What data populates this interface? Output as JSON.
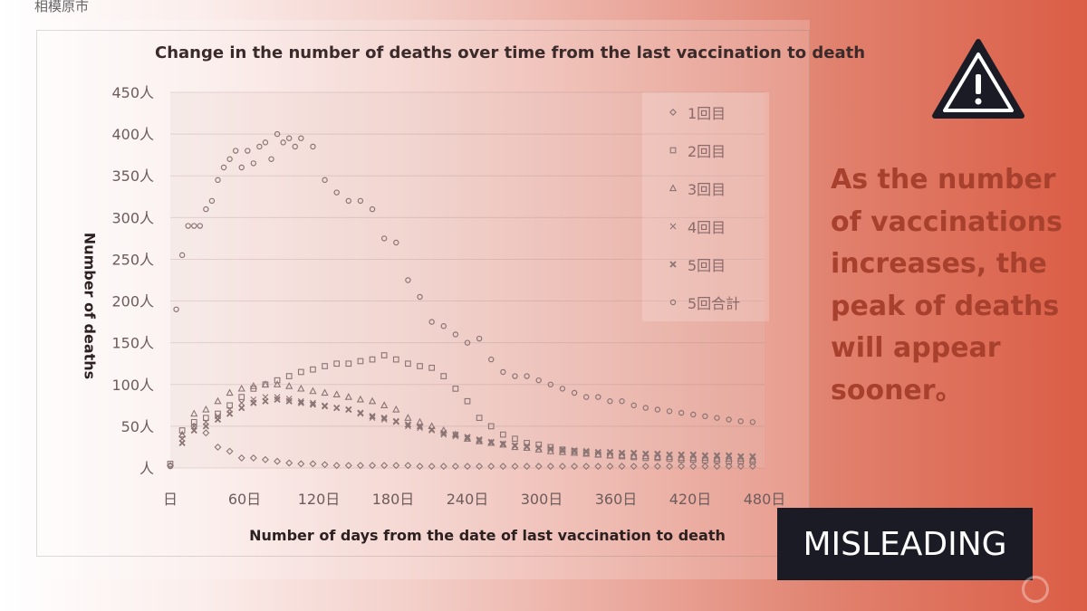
{
  "source_label": "相模原市",
  "claim_text": "As the number of vaccinations increases, the peak of deaths will appear sooner。",
  "verdict_label": "MISLEADING",
  "icons": {
    "warning": "warning-triangle-icon"
  },
  "colors": {
    "accent": "#db5d45",
    "badge_bg": "#1b1b26",
    "claim_text": "#a8402e"
  },
  "chart_data": {
    "type": "scatter",
    "title": "Change in the number of deaths over time from the last vaccination to death",
    "xlabel": "Number of days from the date of last vaccination to death",
    "ylabel": "Number of deaths",
    "xlim": [
      0,
      500
    ],
    "ylim": [
      0,
      450
    ],
    "x_ticks": [
      "日",
      "60日",
      "120日",
      "180日",
      "240日",
      "300日",
      "360日",
      "420日",
      "480日"
    ],
    "y_ticks": [
      "人",
      "50人",
      "100人",
      "150人",
      "200人",
      "250人",
      "300人",
      "350人",
      "400人",
      "450人"
    ],
    "legend_position": "top-right",
    "series": [
      {
        "name": "1回目",
        "marker": "diamond",
        "x": [
          0,
          10,
          20,
          30,
          40,
          50,
          60,
          70,
          80,
          90,
          100,
          110,
          120,
          130,
          140,
          150,
          160,
          170,
          180,
          190,
          200,
          210,
          220,
          230,
          240,
          250,
          260,
          270,
          280,
          290,
          300,
          310,
          320,
          330,
          340,
          350,
          360,
          370,
          380,
          390,
          400,
          410,
          420,
          430,
          440,
          450,
          460,
          470,
          480,
          490
        ],
        "y": [
          3,
          38,
          50,
          42,
          25,
          20,
          12,
          12,
          10,
          8,
          6,
          5,
          5,
          4,
          3,
          3,
          3,
          3,
          3,
          3,
          3,
          2,
          2,
          2,
          2,
          2,
          2,
          2,
          2,
          2,
          2,
          2,
          2,
          2,
          2,
          2,
          2,
          2,
          2,
          2,
          2,
          2,
          2,
          2,
          2,
          2,
          2,
          2,
          2,
          2
        ]
      },
      {
        "name": "2回目",
        "marker": "square",
        "x": [
          0,
          10,
          20,
          30,
          40,
          50,
          60,
          70,
          80,
          90,
          100,
          110,
          120,
          130,
          140,
          150,
          160,
          170,
          180,
          190,
          200,
          210,
          220,
          230,
          240,
          250,
          260,
          270,
          280,
          290,
          300,
          310,
          320,
          330,
          340,
          350,
          360,
          370,
          380,
          390,
          400,
          410,
          420,
          430,
          440,
          450,
          460,
          470,
          480,
          490
        ],
        "y": [
          5,
          45,
          55,
          60,
          65,
          75,
          85,
          95,
          100,
          105,
          110,
          115,
          118,
          122,
          125,
          125,
          128,
          130,
          135,
          130,
          125,
          122,
          120,
          110,
          95,
          80,
          60,
          50,
          40,
          35,
          30,
          28,
          25,
          22,
          20,
          18,
          16,
          15,
          14,
          13,
          12,
          12,
          11,
          10,
          10,
          9,
          9,
          8,
          8,
          8
        ]
      },
      {
        "name": "3回目",
        "marker": "triangle",
        "x": [
          10,
          20,
          30,
          40,
          50,
          60,
          70,
          80,
          90,
          100,
          110,
          120,
          130,
          140,
          150,
          160,
          170,
          180,
          190,
          200,
          210,
          220,
          230,
          240,
          250,
          260,
          270,
          280,
          290,
          300,
          310,
          320,
          330,
          340,
          350,
          360,
          370,
          380,
          390,
          400,
          410,
          420,
          430,
          440,
          450,
          460,
          470,
          480,
          490
        ],
        "y": [
          40,
          65,
          70,
          80,
          90,
          95,
          98,
          100,
          100,
          98,
          95,
          92,
          90,
          88,
          85,
          82,
          80,
          75,
          70,
          60,
          55,
          50,
          45,
          40,
          35,
          32,
          30,
          28,
          25,
          24,
          22,
          20,
          19,
          18,
          17,
          16,
          15,
          15,
          14,
          14,
          13,
          13,
          12,
          12,
          12,
          11,
          11,
          11,
          10
        ]
      },
      {
        "name": "4回目",
        "marker": "x",
        "x": [
          10,
          20,
          30,
          40,
          50,
          60,
          70,
          80,
          90,
          100,
          110,
          120,
          130,
          140,
          150,
          160,
          170,
          180,
          190,
          200,
          210,
          220,
          230,
          240,
          250,
          260,
          270,
          280,
          290,
          300,
          310,
          320,
          330,
          340,
          350,
          360,
          370,
          380,
          390,
          400,
          410,
          420,
          430,
          440,
          450,
          460,
          470,
          480,
          490
        ],
        "y": [
          35,
          50,
          55,
          62,
          70,
          78,
          82,
          85,
          85,
          83,
          80,
          78,
          75,
          72,
          70,
          65,
          60,
          58,
          55,
          50,
          48,
          45,
          40,
          38,
          35,
          32,
          30,
          28,
          26,
          25,
          24,
          22,
          21,
          20,
          19,
          18,
          18,
          17,
          17,
          16,
          16,
          15,
          15,
          15,
          14,
          14,
          14,
          13,
          13
        ]
      },
      {
        "name": "5回目",
        "marker": "x-bold",
        "x": [
          10,
          20,
          30,
          40,
          50,
          60,
          70,
          80,
          90,
          100,
          110,
          120,
          130,
          140,
          150,
          160,
          170,
          180,
          190,
          200,
          210,
          220,
          230,
          240,
          250,
          260,
          270,
          280,
          290,
          300,
          310,
          320,
          330,
          340,
          350,
          360,
          370,
          380,
          390,
          400,
          410,
          420,
          430,
          440,
          450,
          460,
          470,
          480,
          490
        ],
        "y": [
          30,
          45,
          50,
          58,
          65,
          72,
          78,
          80,
          82,
          80,
          78,
          76,
          74,
          72,
          70,
          66,
          62,
          60,
          56,
          52,
          50,
          46,
          42,
          40,
          37,
          34,
          31,
          29,
          27,
          26,
          24,
          23,
          22,
          21,
          20,
          19,
          19,
          18,
          18,
          17,
          17,
          16,
          16,
          16,
          15,
          15,
          15,
          14,
          14
        ]
      },
      {
        "name": "5回合計",
        "marker": "circle",
        "x": [
          0,
          5,
          10,
          15,
          20,
          25,
          30,
          35,
          40,
          45,
          50,
          55,
          60,
          65,
          70,
          75,
          80,
          85,
          90,
          95,
          100,
          105,
          110,
          120,
          130,
          140,
          150,
          160,
          170,
          180,
          190,
          200,
          210,
          220,
          230,
          240,
          250,
          260,
          270,
          280,
          290,
          300,
          310,
          320,
          330,
          340,
          350,
          360,
          370,
          380,
          390,
          400,
          410,
          420,
          430,
          440,
          450,
          460,
          470,
          480,
          490
        ],
        "y": [
          2,
          190,
          255,
          290,
          290,
          290,
          310,
          320,
          345,
          360,
          370,
          380,
          360,
          380,
          365,
          385,
          390,
          370,
          400,
          390,
          395,
          385,
          395,
          385,
          345,
          330,
          320,
          320,
          310,
          275,
          270,
          225,
          205,
          175,
          170,
          160,
          150,
          155,
          130,
          115,
          110,
          110,
          105,
          100,
          95,
          90,
          85,
          85,
          80,
          80,
          75,
          72,
          70,
          68,
          66,
          64,
          62,
          60,
          58,
          56,
          55
        ]
      }
    ]
  }
}
